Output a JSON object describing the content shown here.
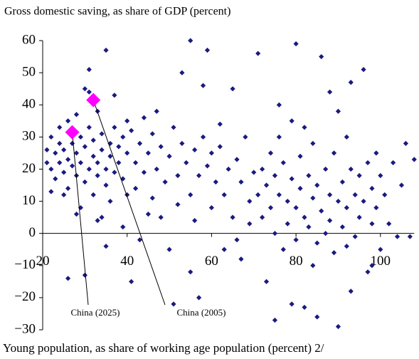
{
  "chart_data": {
    "type": "scatter",
    "title": "Gross domestic saving, as share of GDP (percent)",
    "x_label": "Young population, as share of working age population (percent) 2/",
    "color": "#1a1a80",
    "x": [
      21,
      21,
      22,
      22,
      22,
      23,
      23,
      24,
      24,
      24,
      25,
      25,
      25,
      26,
      26,
      26,
      27,
      27,
      28,
      28,
      28,
      29,
      29,
      29,
      30,
      30,
      30,
      31,
      31,
      31,
      32,
      32,
      32,
      33,
      33,
      33,
      34,
      34,
      34,
      35,
      35,
      35,
      36,
      36,
      36,
      37,
      37,
      37,
      38,
      38,
      39,
      39,
      40,
      40,
      40,
      26,
      30,
      33,
      35,
      39,
      41,
      43,
      45,
      28,
      31,
      41,
      42,
      42,
      43,
      44,
      44,
      45,
      46,
      46,
      47,
      48,
      48,
      49,
      50,
      50,
      51,
      52,
      52,
      53,
      53,
      54,
      55,
      55,
      56,
      56,
      57,
      58,
      58,
      59,
      59,
      60,
      60,
      61,
      62,
      62,
      63,
      64,
      65,
      65,
      66,
      67,
      67,
      68,
      69,
      70,
      55,
      57,
      63,
      51,
      69,
      47,
      66,
      71,
      71,
      72,
      72,
      73,
      73,
      74,
      74,
      75,
      75,
      76,
      76,
      77,
      77,
      78,
      78,
      79,
      79,
      80,
      80,
      80,
      81,
      81,
      82,
      82,
      83,
      83,
      84,
      84,
      85,
      85,
      86,
      86,
      87,
      87,
      88,
      88,
      89,
      89,
      90,
      90,
      91,
      91,
      92,
      92,
      93,
      93,
      94,
      94,
      95,
      95,
      96,
      96,
      97,
      97,
      98,
      98,
      99,
      99,
      100,
      100,
      101,
      102,
      103,
      104,
      105,
      106,
      107,
      108,
      90,
      85,
      79,
      75,
      93,
      98,
      88,
      76,
      82,
      92,
      84
    ],
    "values": [
      22,
      26,
      13,
      20,
      30,
      25,
      17,
      28,
      22,
      33,
      12,
      19,
      26,
      23,
      35,
      14,
      21,
      28,
      18,
      37,
      25,
      22,
      8,
      30,
      16,
      27,
      45,
      20,
      33,
      51,
      24,
      12,
      29,
      18,
      38,
      22,
      26,
      5,
      31,
      20,
      57,
      15,
      28,
      24,
      10,
      19,
      33,
      43,
      22,
      27,
      30,
      17,
      35,
      25,
      12,
      -14,
      -13,
      4,
      -4,
      2,
      -15,
      -2,
      6,
      6,
      44,
      32,
      22,
      14,
      28,
      19,
      36,
      25,
      11,
      31,
      20,
      5,
      27,
      16,
      24,
      -5,
      33,
      18,
      9,
      50,
      28,
      22,
      12,
      60,
      26,
      4,
      18,
      30,
      46,
      21,
      57,
      8,
      25,
      16,
      27,
      34,
      12,
      20,
      5,
      45,
      23,
      16,
      -8,
      30,
      10,
      19,
      -12,
      -20,
      -5,
      -22,
      3,
      38,
      -2,
      12,
      56,
      20,
      5,
      15,
      -15,
      25,
      8,
      0,
      18,
      12,
      30,
      -5,
      22,
      10,
      3,
      17,
      35,
      8,
      -2,
      59,
      14,
      24,
      5,
      -23,
      18,
      2,
      11,
      28,
      -3,
      15,
      7,
      55,
      20,
      0,
      12,
      4,
      -6,
      25,
      10,
      38,
      2,
      16,
      -4,
      8,
      20,
      47,
      12,
      -1,
      5,
      18,
      51,
      10,
      -12,
      22,
      3,
      14,
      25,
      8,
      -5,
      18,
      12,
      3,
      22,
      -1,
      15,
      28,
      -1,
      23,
      -29,
      -26,
      -22,
      -27,
      -18,
      -10,
      44,
      40,
      33,
      30,
      -10
    ],
    "highlights": [
      {
        "label": "China (2025)",
        "x": 27,
        "y": 31.5,
        "color": "#ff00ff"
      },
      {
        "label": "China (2005)",
        "x": 32,
        "y": 41.5,
        "color": "#ff00ff"
      }
    ],
    "xlim": [
      20,
      108
    ],
    "ylim": [
      -30,
      60
    ],
    "xticks": [
      20,
      40,
      60,
      80,
      100
    ],
    "yticks": [
      60,
      50,
      40,
      30,
      20,
      10,
      0,
      {
        "value": -10,
        "label": "−10"
      },
      {
        "value": -20,
        "label": "−20"
      },
      {
        "value": -30,
        "label": "−30"
      }
    ],
    "grid": false
  }
}
